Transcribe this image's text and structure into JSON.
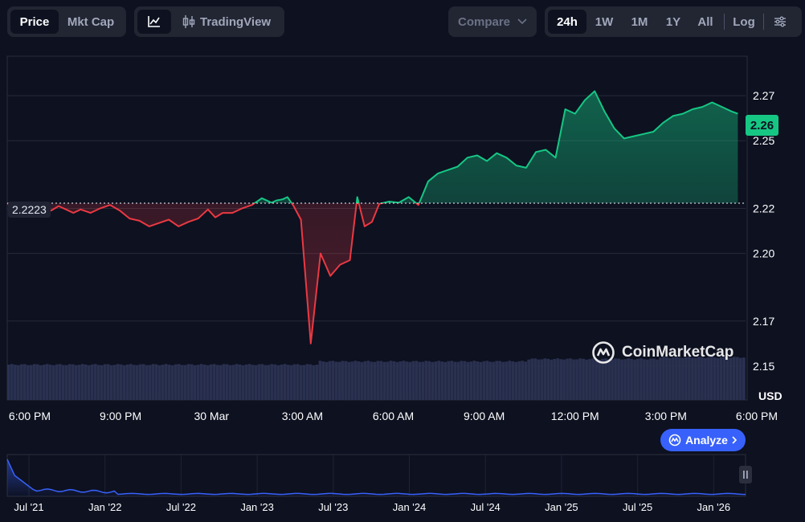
{
  "toolbar": {
    "metric_tabs": [
      {
        "label": "Price",
        "active": true
      },
      {
        "label": "Mkt Cap",
        "active": false
      }
    ],
    "tradingview_label": "TradingView",
    "compare_label": "Compare",
    "ranges": [
      {
        "label": "24h",
        "active": true
      },
      {
        "label": "1W",
        "active": false
      },
      {
        "label": "1M",
        "active": false
      },
      {
        "label": "1Y",
        "active": false
      },
      {
        "label": "All",
        "active": false
      }
    ],
    "log_label": "Log"
  },
  "colors": {
    "up": "#16c784",
    "down": "#ea3943",
    "accent": "#3861fb",
    "background": "#0d1120"
  },
  "chart_data": [
    {
      "type": "line",
      "title": "",
      "currency_label": "USD",
      "reference_value": 2.2223,
      "reference_label": "2.2223",
      "last_value_label": "2.26",
      "y_ticks": [
        "2.27",
        "2.25",
        "2.22",
        "2.20",
        "2.17",
        "2.15"
      ],
      "x_ticks": [
        "6:00 PM",
        "9:00 PM",
        "30 Mar",
        "3:00 AM",
        "6:00 AM",
        "9:00 AM",
        "12:00 PM",
        "3:00 PM",
        "6:00 PM"
      ],
      "ylim": [
        2.135,
        2.2875
      ],
      "x_hours": [
        0,
        0.3,
        0.6,
        0.9,
        1.2,
        1.5,
        1.8,
        2.1,
        2.4,
        2.7,
        3.0,
        3.4,
        3.8,
        4.2,
        4.6,
        5.0,
        5.4,
        5.8,
        6.2,
        6.6,
        7.0,
        7.4,
        7.8,
        8.2,
        8.5,
        8.8,
        9.2,
        9.6,
        10.0,
        10.4,
        10.8,
        11.0,
        11.25,
        11.45,
        11.7,
        12.0,
        12.4,
        12.8,
        13.2,
        13.6,
        14.0,
        14.3,
        14.6,
        14.9,
        15.2,
        15.6,
        16.0,
        16.4,
        16.8,
        17.2,
        17.6,
        18.0,
        18.4,
        18.8,
        19.2,
        19.6,
        20.0,
        20.4,
        20.8,
        21.2,
        21.6,
        22.0,
        22.4,
        22.8,
        23.2,
        23.6,
        24.0,
        24.4,
        24.8,
        25.2,
        25.6,
        26.0,
        26.4,
        26.8,
        27.2,
        27.6,
        28.0,
        28.4,
        28.8,
        29.2,
        29.6,
        29.85
      ],
      "prices": [
        2.2223,
        2.2195,
        2.217,
        2.2215,
        2.217,
        2.2205,
        2.219,
        2.221,
        2.2195,
        2.218,
        2.2195,
        2.218,
        2.22,
        2.2215,
        2.219,
        2.2155,
        2.2145,
        2.212,
        2.2135,
        2.215,
        2.212,
        2.214,
        2.2155,
        2.2195,
        2.216,
        2.218,
        2.218,
        2.22,
        2.2215,
        2.2245,
        2.2225,
        2.2235,
        2.224,
        2.225,
        2.221,
        2.215,
        2.16,
        2.2,
        2.19,
        2.195,
        2.197,
        2.225,
        2.212,
        2.214,
        2.222,
        2.223,
        2.2225,
        2.225,
        2.2215,
        2.232,
        2.2355,
        2.237,
        2.2385,
        2.2425,
        2.2435,
        2.241,
        2.2445,
        2.2425,
        2.239,
        2.238,
        2.245,
        2.246,
        2.2425,
        2.264,
        2.262,
        2.268,
        2.272,
        2.263,
        2.2555,
        2.251,
        2.252,
        2.253,
        2.254,
        2.258,
        2.261,
        2.262,
        2.264,
        2.265,
        2.267,
        2.265,
        2.263,
        2.262
      ]
    },
    {
      "type": "area",
      "title": "",
      "x_ticks": [
        "Jul '21",
        "Jan '22",
        "Jul '22",
        "Jan '23",
        "Jul '23",
        "Jan '24",
        "Jul '24",
        "Jan '25",
        "Jul '25",
        "Jan '26"
      ]
    }
  ],
  "watermark": "CoinMarketCap",
  "analyze_label": "Analyze"
}
